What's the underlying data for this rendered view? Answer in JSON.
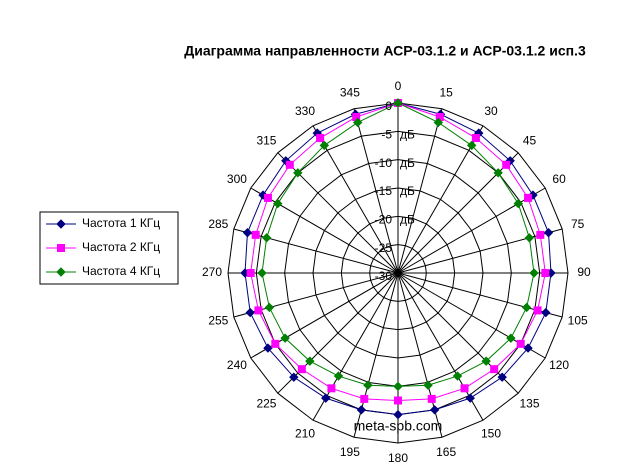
{
  "chart_data": {
    "type": "radar",
    "title": "Диаграмма направленности АСР-03.1.2 и АСР-03.1.2 исп.3",
    "categories": [
      "0",
      "15",
      "30",
      "45",
      "60",
      "75",
      "90",
      "105",
      "120",
      "135",
      "150",
      "165",
      "180",
      "195",
      "210",
      "225",
      "240",
      "255",
      "270",
      "285",
      "300",
      "315",
      "330",
      "345"
    ],
    "series": [
      {
        "name": "Частота 1 КГц",
        "color": "#000080",
        "marker": "diamond",
        "values": [
          0,
          -1,
          -1.5,
          -2,
          -2.5,
          -2.5,
          -3,
          -3,
          -3.5,
          -4,
          -4.5,
          -5,
          -5,
          -5,
          -4.5,
          -4,
          -3.5,
          -3,
          -3,
          -2.5,
          -2.5,
          -2,
          -1.5,
          -1
        ]
      },
      {
        "name": "Частота 2 КГц",
        "color": "#ff00ff",
        "marker": "square",
        "values": [
          0,
          -1.5,
          -2.5,
          -3,
          -3.5,
          -4,
          -4,
          -4.5,
          -5,
          -6,
          -6.5,
          -7,
          -7.5,
          -7,
          -6.5,
          -6,
          -5,
          -4.5,
          -4,
          -4,
          -3.5,
          -3,
          -2.5,
          -1.5
        ]
      },
      {
        "name": "Частота 4 КГц",
        "color": "#008000",
        "marker": "diamond",
        "values": [
          0,
          -2.5,
          -4,
          -5,
          -5.5,
          -6,
          -6,
          -6.5,
          -7,
          -8,
          -9,
          -9.5,
          -10,
          -9.5,
          -9,
          -8,
          -7,
          -6.5,
          -6,
          -6,
          -5.5,
          -5,
          -4,
          -2.5
        ]
      }
    ],
    "ylim": [
      -30,
      0
    ],
    "yticks": [
      0,
      -5,
      -10,
      -15,
      -20,
      -25,
      -30
    ],
    "unit_labels": [
      "дБ",
      "дБ",
      "дБ",
      "дБ"
    ],
    "watermark": "meta-spb.com",
    "grid": true,
    "legend": "left"
  }
}
